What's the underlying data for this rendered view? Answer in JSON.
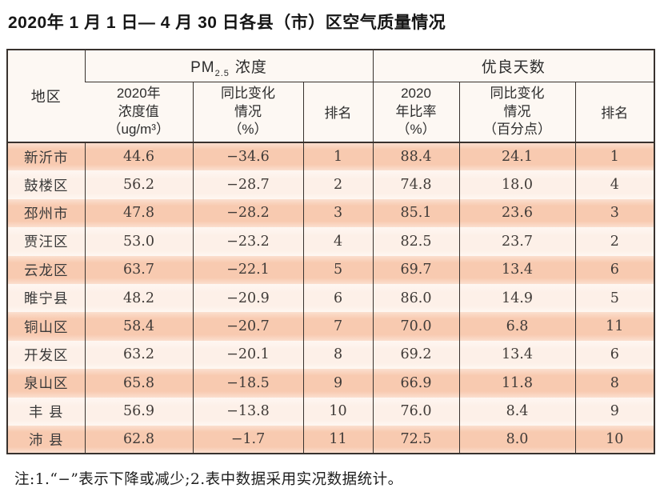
{
  "page": {
    "title": "2020年 1 月 1 日— 4 月 30 日各县（市）区空气质量情况"
  },
  "colors": {
    "border": "#38322e",
    "header_bg": "#fdf8f3",
    "row_stripe": "#f8cab0",
    "row_light": "#fdf0e8"
  },
  "table": {
    "headers": {
      "region": "地区",
      "pm_group": {
        "prefix": "PM",
        "sub": "2.5",
        "suffix": "浓度"
      },
      "days_group": "优良天数",
      "pm_value_lines": [
        "2020年",
        "浓度值",
        "（ug/m³）"
      ],
      "pm_change_lines": [
        "同比变化",
        "情况",
        "（%）"
      ],
      "pm_rank": "排名",
      "days_ratio_lines": [
        "2020",
        "年比率",
        "（%）"
      ],
      "days_change_lines": [
        "同比变化",
        "情况",
        "（百分点）"
      ],
      "days_rank": "排名"
    },
    "rows": [
      {
        "region": "新沂市",
        "pm_value": "44.6",
        "pm_change": "−34.6",
        "pm_rank": "1",
        "days_ratio": "88.4",
        "days_change": "24.1",
        "days_rank": "1"
      },
      {
        "region": "鼓楼区",
        "pm_value": "56.2",
        "pm_change": "−28.7",
        "pm_rank": "2",
        "days_ratio": "74.8",
        "days_change": "18.0",
        "days_rank": "4"
      },
      {
        "region": "邳州市",
        "pm_value": "47.8",
        "pm_change": "−28.2",
        "pm_rank": "3",
        "days_ratio": "85.1",
        "days_change": "23.6",
        "days_rank": "3"
      },
      {
        "region": "贾汪区",
        "pm_value": "53.0",
        "pm_change": "−23.2",
        "pm_rank": "4",
        "days_ratio": "82.5",
        "days_change": "23.7",
        "days_rank": "2"
      },
      {
        "region": "云龙区",
        "pm_value": "63.7",
        "pm_change": "−22.1",
        "pm_rank": "5",
        "days_ratio": "69.7",
        "days_change": "13.4",
        "days_rank": "6"
      },
      {
        "region": "睢宁县",
        "pm_value": "48.2",
        "pm_change": "−20.9",
        "pm_rank": "6",
        "days_ratio": "86.0",
        "days_change": "14.9",
        "days_rank": "5"
      },
      {
        "region": "铜山区",
        "pm_value": "58.4",
        "pm_change": "−20.7",
        "pm_rank": "7",
        "days_ratio": "70.0",
        "days_change": "6.8",
        "days_rank": "11"
      },
      {
        "region": "开发区",
        "pm_value": "63.2",
        "pm_change": "−20.1",
        "pm_rank": "8",
        "days_ratio": "69.2",
        "days_change": "13.4",
        "days_rank": "6"
      },
      {
        "region": "泉山区",
        "pm_value": "65.8",
        "pm_change": "−18.5",
        "pm_rank": "9",
        "days_ratio": "66.9",
        "days_change": "11.8",
        "days_rank": "8"
      },
      {
        "region": "丰 县",
        "pm_value": "56.9",
        "pm_change": "−13.8",
        "pm_rank": "10",
        "days_ratio": "76.0",
        "days_change": "8.4",
        "days_rank": "9"
      },
      {
        "region": "沛 县",
        "pm_value": "62.8",
        "pm_change": "−1.7",
        "pm_rank": "11",
        "days_ratio": "72.5",
        "days_change": "8.0",
        "days_rank": "10"
      }
    ]
  },
  "footnote": "注:1.“−”表示下降或减少;2.表中数据采用实况数据统计。"
}
